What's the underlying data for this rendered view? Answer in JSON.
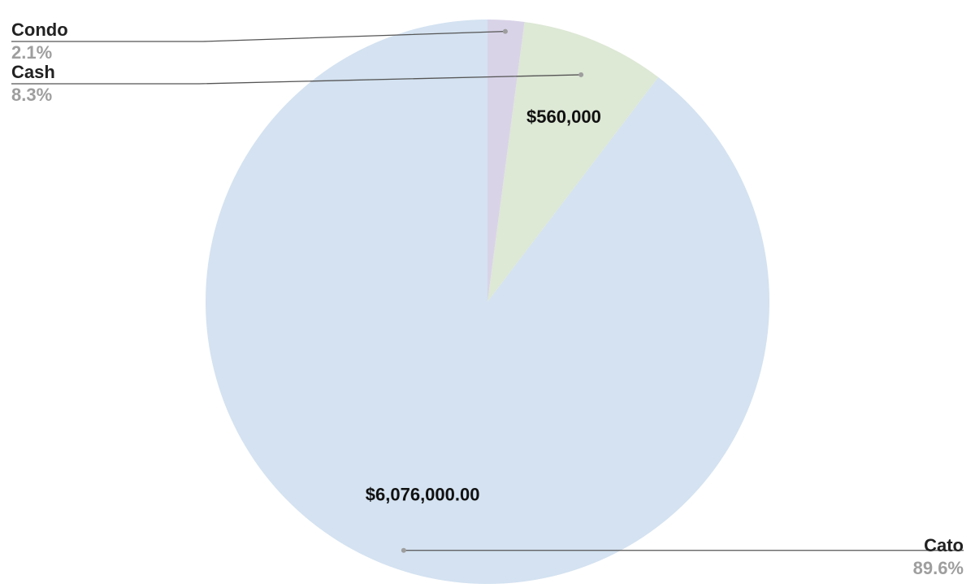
{
  "chart_data": {
    "type": "pie",
    "slices": [
      {
        "name": "Cato",
        "value": 6076000,
        "percent_label": "89.6%",
        "data_label": "$6,076,000.00",
        "color": "#d4e2f1"
      },
      {
        "name": "Cash",
        "value": 560000,
        "percent_label": "8.3%",
        "data_label": "$560,000",
        "color": "#dde8d5"
      },
      {
        "name": "Condo",
        "value": 142000,
        "percent_label": "2.1%",
        "data_label": "",
        "color": "#d9d3e8"
      }
    ],
    "start_angle": "12 o'clock",
    "direction": "counter-clockwise",
    "legend": "none"
  }
}
